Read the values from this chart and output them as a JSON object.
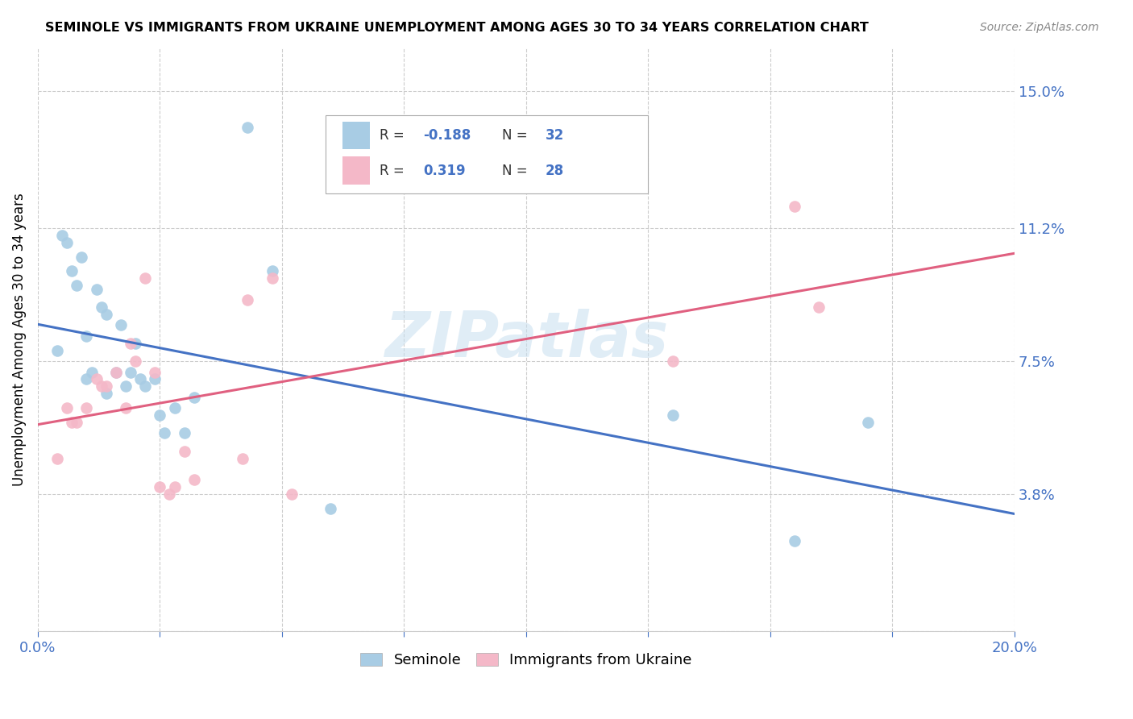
{
  "title": "SEMINOLE VS IMMIGRANTS FROM UKRAINE UNEMPLOYMENT AMONG AGES 30 TO 34 YEARS CORRELATION CHART",
  "source": "Source: ZipAtlas.com",
  "ylabel": "Unemployment Among Ages 30 to 34 years",
  "yticks": [
    0.0,
    0.038,
    0.075,
    0.112,
    0.15
  ],
  "ytick_labels": [
    "",
    "3.8%",
    "7.5%",
    "11.2%",
    "15.0%"
  ],
  "xlim": [
    0.0,
    0.2
  ],
  "ylim": [
    0.0,
    0.162
  ],
  "color_blue": "#a8cce4",
  "color_pink": "#f4b8c8",
  "line_blue": "#4472c4",
  "line_pink": "#e06080",
  "label_color": "#4472c4",
  "watermark": "ZIPatlas",
  "seminole_x": [
    0.004,
    0.005,
    0.006,
    0.007,
    0.008,
    0.009,
    0.01,
    0.01,
    0.011,
    0.012,
    0.013,
    0.014,
    0.014,
    0.016,
    0.017,
    0.018,
    0.019,
    0.02,
    0.021,
    0.022,
    0.024,
    0.025,
    0.026,
    0.028,
    0.03,
    0.032,
    0.043,
    0.048,
    0.06,
    0.13,
    0.155,
    0.17
  ],
  "seminole_y": [
    0.078,
    0.11,
    0.108,
    0.1,
    0.096,
    0.104,
    0.082,
    0.07,
    0.072,
    0.095,
    0.09,
    0.088,
    0.066,
    0.072,
    0.085,
    0.068,
    0.072,
    0.08,
    0.07,
    0.068,
    0.07,
    0.06,
    0.055,
    0.062,
    0.055,
    0.065,
    0.14,
    0.1,
    0.034,
    0.06,
    0.025,
    0.058
  ],
  "ukraine_x": [
    0.004,
    0.006,
    0.007,
    0.008,
    0.01,
    0.012,
    0.013,
    0.014,
    0.016,
    0.018,
    0.019,
    0.02,
    0.022,
    0.024,
    0.025,
    0.027,
    0.028,
    0.03,
    0.032,
    0.042,
    0.043,
    0.048,
    0.052,
    0.13,
    0.155,
    0.16
  ],
  "ukraine_y": [
    0.048,
    0.062,
    0.058,
    0.058,
    0.062,
    0.07,
    0.068,
    0.068,
    0.072,
    0.062,
    0.08,
    0.075,
    0.098,
    0.072,
    0.04,
    0.038,
    0.04,
    0.05,
    0.042,
    0.048,
    0.092,
    0.098,
    0.038,
    0.075,
    0.118,
    0.09
  ]
}
